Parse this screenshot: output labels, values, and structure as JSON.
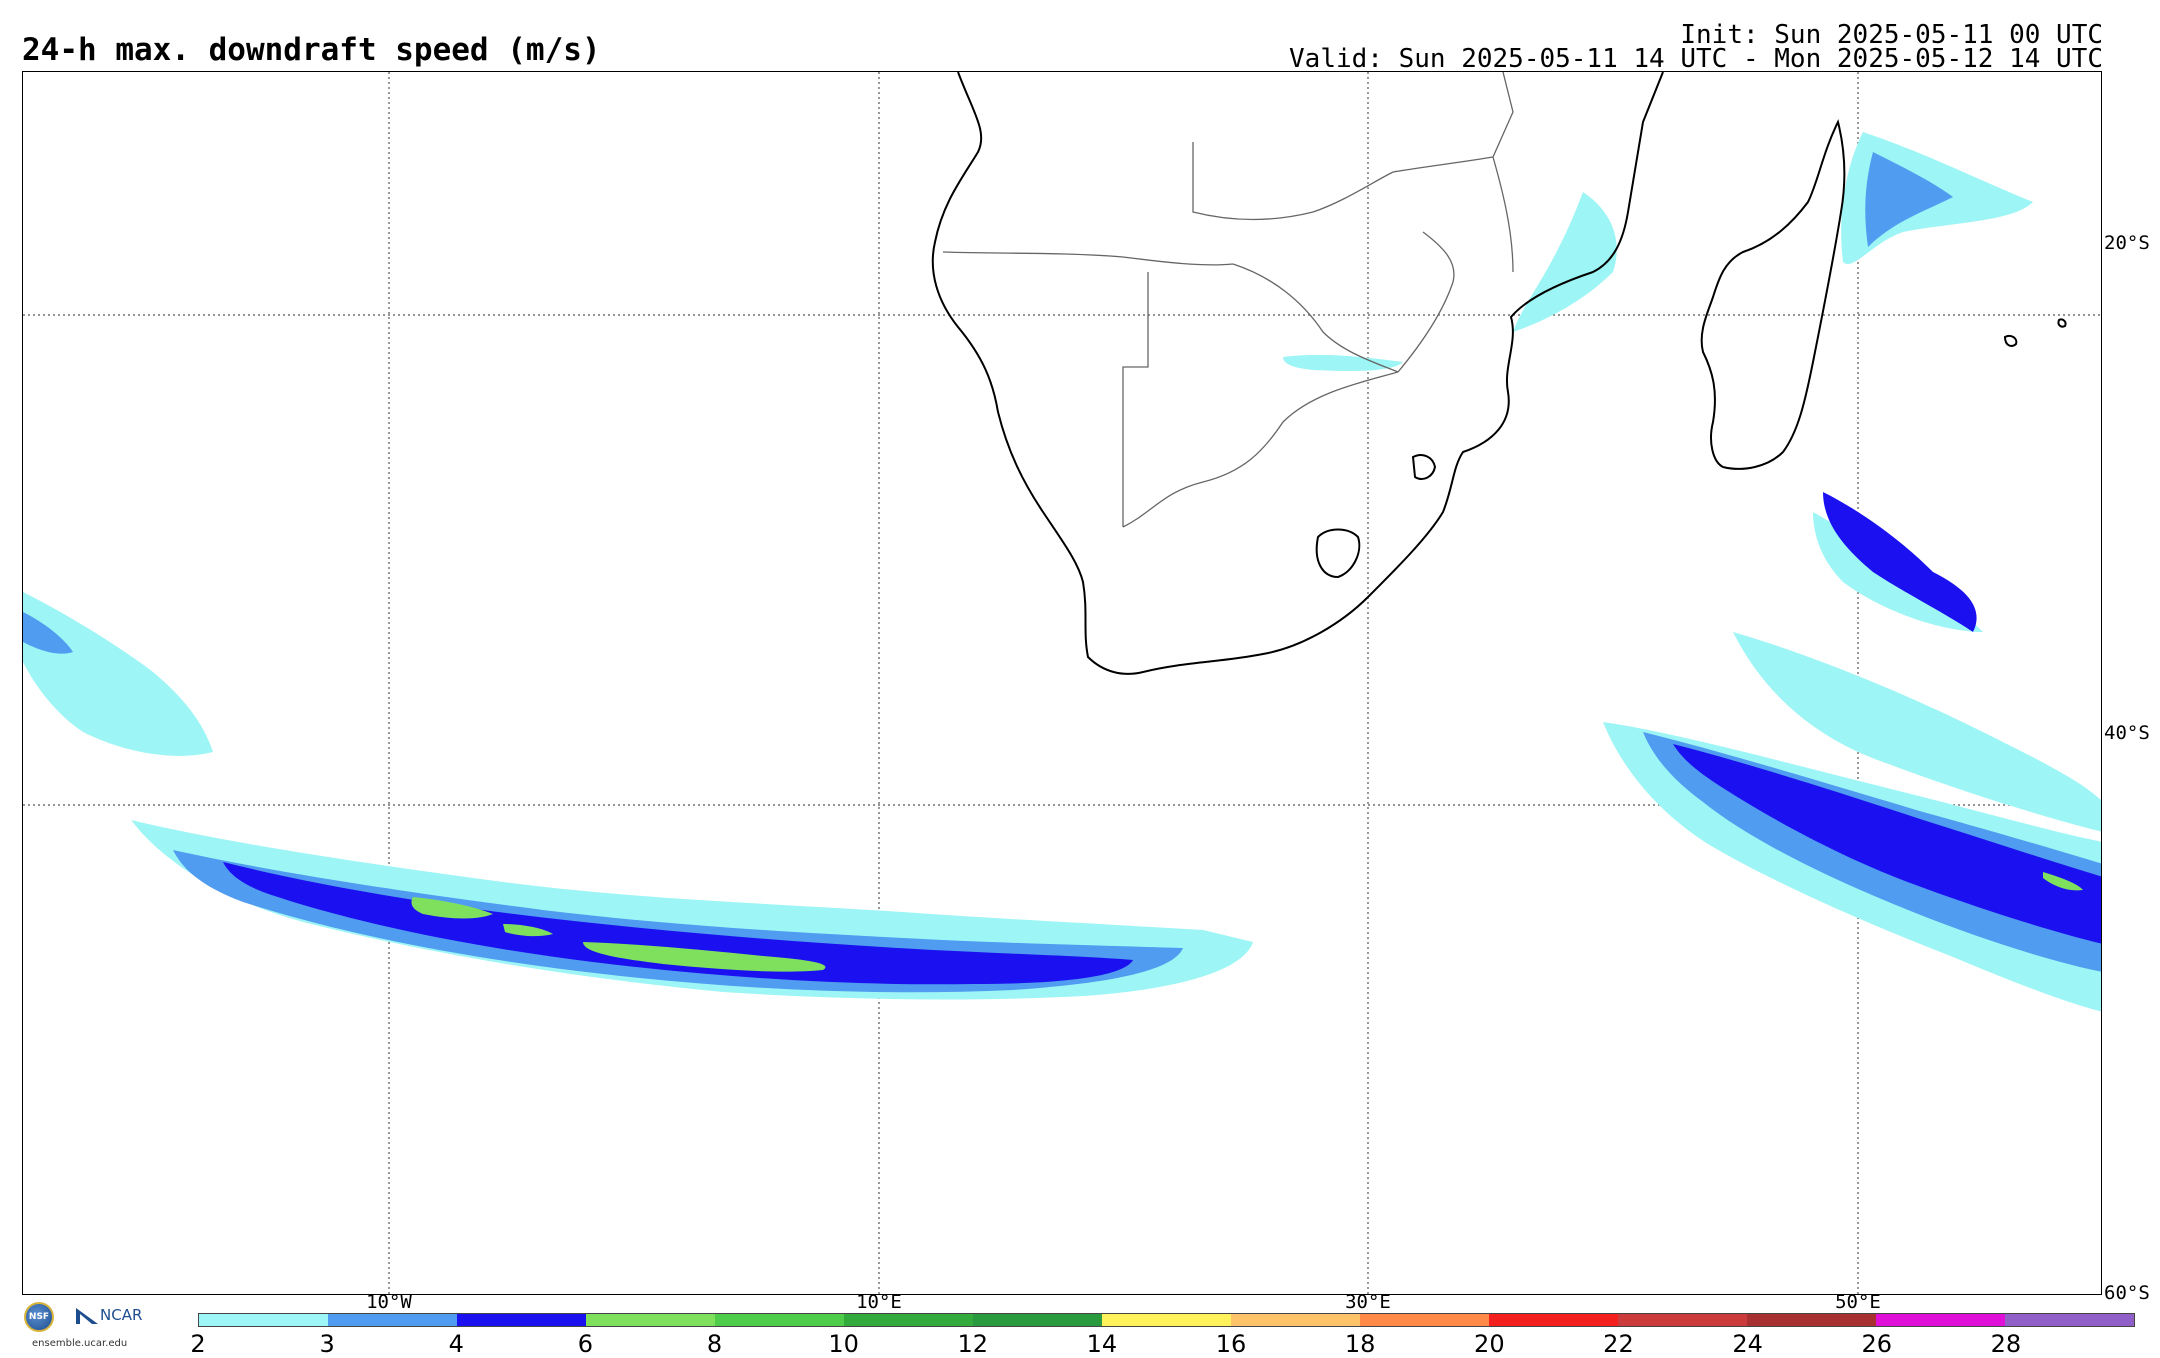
{
  "header": {
    "title": "24-h max. downdraft speed (m/s)",
    "init": "Init: Sun 2025-05-11 00 UTC",
    "valid": "Valid: Sun 2025-05-11 14 UTC - Mon 2025-05-12 14 UTC"
  },
  "map": {
    "region": "Southern Africa and South Atlantic / Indian Ocean",
    "latitude_labels": [
      "20°S",
      "40°S",
      "60°S"
    ],
    "longitude_labels": [
      "10°W",
      "10°E",
      "30°E",
      "50°E"
    ],
    "gridlines": "dotted",
    "features": [
      "coastlines",
      "country borders",
      "Madagascar",
      "Lesotho",
      "Eswatini"
    ]
  },
  "colorbar": {
    "ticks": [
      "2",
      "3",
      "4",
      "6",
      "8",
      "10",
      "12",
      "14",
      "16",
      "18",
      "20",
      "22",
      "24",
      "26",
      "28"
    ],
    "colors": [
      "#9ef5f5",
      "#4f9cf0",
      "#1a10f0",
      "#7fe05e",
      "#4fcc4a",
      "#33aa3c",
      "#2a9a3e",
      "#fff25a",
      "#ffc46a",
      "#ff8a4a",
      "#f42020",
      "#cc3b3b",
      "#a83030",
      "#e010d8",
      "#9060c8"
    ]
  },
  "logo": {
    "nsf_text": "NSF",
    "ncar_text": "NCAR",
    "url": "ensemble.ucar.edu"
  }
}
